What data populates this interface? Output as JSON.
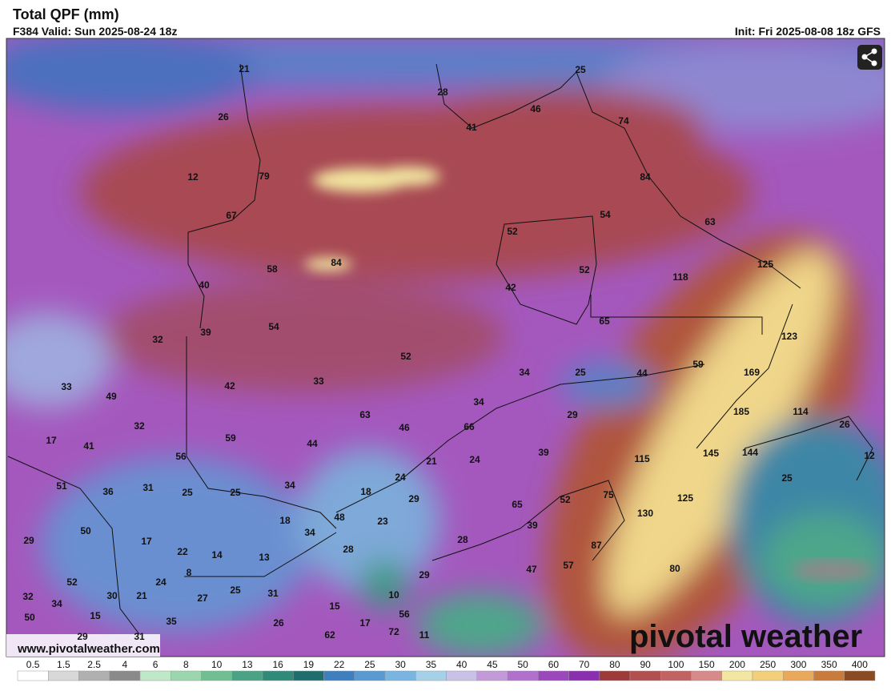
{
  "header": {
    "title": "Total QPF (mm)",
    "valid": "F384 Valid: Sun 2025-08-24 18z",
    "init": "Init: Fri 2025-08-08 18z GFS"
  },
  "watermark": "www.pivotalweather.com",
  "logo": "pivotal weather",
  "legend": {
    "labels": [
      "0.5",
      "1.5",
      "2.5",
      "4",
      "6",
      "8",
      "10",
      "13",
      "16",
      "19",
      "22",
      "25",
      "30",
      "35",
      "40",
      "45",
      "50",
      "60",
      "70",
      "80",
      "90",
      "100",
      "150",
      "200",
      "250",
      "300",
      "350",
      "400"
    ],
    "colors": [
      "#ffffff",
      "#d8d8d8",
      "#b0b0b0",
      "#8a8a8a",
      "#bfe8c8",
      "#9bd6ac",
      "#6fbf93",
      "#4aa384",
      "#2f8a7a",
      "#1f6e6e",
      "#3f7fbf",
      "#5a9ad2",
      "#7ab4e0",
      "#a6cfe8",
      "#c9c1e6",
      "#c39ad8",
      "#b070cc",
      "#9a48bc",
      "#8a2fb0",
      "#9e3a3a",
      "#b24f4f",
      "#c26363",
      "#d88a8a",
      "#f2e6a0",
      "#f3cf7a",
      "#e9a85a",
      "#c97b3c",
      "#8a4a22"
    ]
  },
  "map": {
    "labels": [
      "21",
      "28",
      "25",
      "26",
      "41",
      "46",
      "74",
      "79",
      "12",
      "84",
      "67",
      "54",
      "52",
      "63",
      "58",
      "84",
      "52",
      "118",
      "125",
      "40",
      "42",
      "65",
      "39",
      "54",
      "32",
      "52",
      "123",
      "34",
      "25",
      "44",
      "59",
      "33",
      "169",
      "33",
      "49",
      "42",
      "34",
      "63",
      "29",
      "185",
      "114",
      "26",
      "32",
      "46",
      "66",
      "17",
      "59",
      "41",
      "44",
      "56",
      "21",
      "24",
      "39",
      "115",
      "145",
      "144",
      "12",
      "51",
      "36",
      "31",
      "25",
      "25",
      "34",
      "18",
      "24",
      "29",
      "25",
      "65",
      "52",
      "75",
      "125",
      "130",
      "18",
      "48",
      "34",
      "23",
      "39",
      "29",
      "50",
      "17",
      "22",
      "14",
      "13",
      "28",
      "28",
      "87",
      "52",
      "24",
      "8",
      "47",
      "57",
      "29",
      "80",
      "32",
      "34",
      "30",
      "21",
      "27",
      "25",
      "31",
      "10",
      "15",
      "50",
      "15",
      "35",
      "26",
      "17",
      "56",
      "29",
      "31",
      "62",
      "72",
      "11"
    ]
  }
}
